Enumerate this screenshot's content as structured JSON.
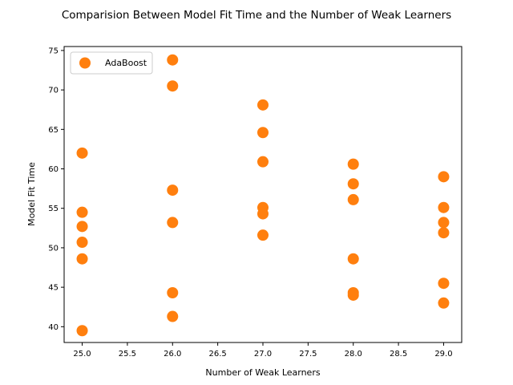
{
  "chart_data": {
    "type": "scatter",
    "title": "Comparision Between Model Fit Time and the Number of Weak Learners",
    "xlabel": "Number of Weak Learners",
    "ylabel": "Model Fit Time",
    "xlim": [
      24.8,
      29.2
    ],
    "ylim": [
      38,
      75.5
    ],
    "xticks": [
      25.0,
      25.5,
      26.0,
      26.5,
      27.0,
      27.5,
      28.0,
      28.5,
      29.0
    ],
    "xtick_labels": [
      "25.0",
      "25.5",
      "26.0",
      "26.5",
      "27.0",
      "27.5",
      "28.0",
      "28.5",
      "29.0"
    ],
    "yticks": [
      40,
      45,
      50,
      55,
      60,
      65,
      70,
      75
    ],
    "ytick_labels": [
      "40",
      "45",
      "50",
      "55",
      "60",
      "65",
      "70",
      "75"
    ],
    "grid": false,
    "legend": {
      "position": "top-left"
    },
    "series": [
      {
        "name": "AdaBoost",
        "color": "#ff7f0e",
        "points": [
          {
            "x": 25,
            "y": 62.0
          },
          {
            "x": 25,
            "y": 54.5
          },
          {
            "x": 25,
            "y": 52.7
          },
          {
            "x": 25,
            "y": 50.7
          },
          {
            "x": 25,
            "y": 48.6
          },
          {
            "x": 25,
            "y": 39.5
          },
          {
            "x": 26,
            "y": 73.8
          },
          {
            "x": 26,
            "y": 70.5
          },
          {
            "x": 26,
            "y": 57.3
          },
          {
            "x": 26,
            "y": 53.2
          },
          {
            "x": 26,
            "y": 44.3
          },
          {
            "x": 26,
            "y": 41.3
          },
          {
            "x": 27,
            "y": 68.1
          },
          {
            "x": 27,
            "y": 64.6
          },
          {
            "x": 27,
            "y": 60.9
          },
          {
            "x": 27,
            "y": 55.1
          },
          {
            "x": 27,
            "y": 54.3
          },
          {
            "x": 27,
            "y": 51.6
          },
          {
            "x": 28,
            "y": 60.6
          },
          {
            "x": 28,
            "y": 58.1
          },
          {
            "x": 28,
            "y": 56.1
          },
          {
            "x": 28,
            "y": 48.6
          },
          {
            "x": 28,
            "y": 44.3
          },
          {
            "x": 28,
            "y": 44.0
          },
          {
            "x": 29,
            "y": 59.0
          },
          {
            "x": 29,
            "y": 55.1
          },
          {
            "x": 29,
            "y": 53.2
          },
          {
            "x": 29,
            "y": 51.9
          },
          {
            "x": 29,
            "y": 45.5
          },
          {
            "x": 29,
            "y": 43.0
          }
        ]
      }
    ]
  }
}
